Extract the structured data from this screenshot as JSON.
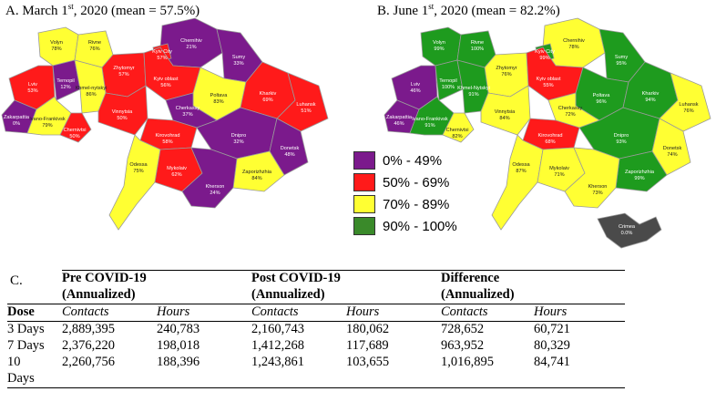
{
  "map_a": {
    "title_pre": "A. March 1",
    "title_sup": "st",
    "title_post": ", 2020 (mean = 57.5%)",
    "regions": [
      {
        "id": "volyn",
        "name": "Volyn",
        "value": "78%",
        "category": "yellow"
      },
      {
        "id": "rivne",
        "name": "Rivne",
        "value": "76%",
        "category": "yellow"
      },
      {
        "id": "chernihiv",
        "name": "Chernihiv",
        "value": "21%",
        "category": "purple"
      },
      {
        "id": "sumy",
        "name": "Sumy",
        "value": "33%",
        "category": "purple"
      },
      {
        "id": "lviv",
        "name": "Lviv",
        "value": "53%",
        "category": "red"
      },
      {
        "id": "zhytomyr",
        "name": "Zhytomyr",
        "value": "57%",
        "category": "red"
      },
      {
        "id": "kyiv-city",
        "name": "Kyiv City",
        "value": "57%",
        "category": "red"
      },
      {
        "id": "kyiv-oblast",
        "name": "Kyiv oblast",
        "value": "56%",
        "category": "red"
      },
      {
        "id": "ternopil",
        "name": "Ternopil",
        "value": "12%",
        "category": "purple"
      },
      {
        "id": "khmelnytskyi",
        "name": "Khmel-nytskyi",
        "value": "86%",
        "category": "yellow"
      },
      {
        "id": "poltava",
        "name": "Poltava",
        "value": "83%",
        "category": "yellow"
      },
      {
        "id": "kharkiv",
        "name": "Kharkiv",
        "value": "69%",
        "category": "red"
      },
      {
        "id": "luhansk",
        "name": "Luhansk",
        "value": "51%",
        "category": "red"
      },
      {
        "id": "zakarpattia",
        "name": "Zakarpattia",
        "value": "0%",
        "category": "purple"
      },
      {
        "id": "ivano-frankivsk",
        "name": "Ivano-Frankivsk",
        "value": "79%",
        "category": "yellow"
      },
      {
        "id": "chernivtsi",
        "name": "Chernivtsi",
        "value": "50%",
        "category": "red"
      },
      {
        "id": "vinnytsia",
        "name": "Vinnytsia",
        "value": "50%",
        "category": "red"
      },
      {
        "id": "cherkassy",
        "name": "Cherkassy",
        "value": "37%",
        "category": "purple"
      },
      {
        "id": "kirovohrad",
        "name": "Kirovohrad",
        "value": "58%",
        "category": "red"
      },
      {
        "id": "dnipro",
        "name": "Dnipro",
        "value": "32%",
        "category": "purple"
      },
      {
        "id": "donetsk",
        "name": "Donetsk",
        "value": "48%",
        "category": "purple"
      },
      {
        "id": "odessa",
        "name": "Odessa",
        "value": "75%",
        "category": "yellow"
      },
      {
        "id": "mykolaiv",
        "name": "Mykolaiv",
        "value": "62%",
        "category": "red"
      },
      {
        "id": "zaporizhzhia",
        "name": "Zaporizhzhia",
        "value": "84%",
        "category": "yellow"
      },
      {
        "id": "kherson",
        "name": "Kherson",
        "value": "24%",
        "category": "purple"
      }
    ]
  },
  "map_b": {
    "title_pre": "B. June 1",
    "title_sup": "st",
    "title_post": ", 2020 (mean = 82.2%)",
    "crimea": {
      "name": "Crimea",
      "value": "0.0%"
    },
    "regions": [
      {
        "id": "volyn",
        "name": "Volyn",
        "value": "99%",
        "category": "green"
      },
      {
        "id": "rivne",
        "name": "Rivne",
        "value": "100%",
        "category": "green"
      },
      {
        "id": "chernihiv",
        "name": "Chernihiv",
        "value": "78%",
        "category": "yellow"
      },
      {
        "id": "sumy",
        "name": "Sumy",
        "value": "95%",
        "category": "green"
      },
      {
        "id": "lviv",
        "name": "Lviv",
        "value": "46%",
        "category": "purple"
      },
      {
        "id": "zhytomyr",
        "name": "Zhytomyr",
        "value": "76%",
        "category": "yellow"
      },
      {
        "id": "kyiv-city",
        "name": "Kyiv City",
        "value": "99%",
        "category": "green"
      },
      {
        "id": "kyiv-oblast",
        "name": "Kyiv oblast",
        "value": "55%",
        "category": "red"
      },
      {
        "id": "ternopil",
        "name": "Ternopil",
        "value": "100%",
        "category": "green"
      },
      {
        "id": "khmelnytskyi",
        "name": "Khmel-Nytskyi",
        "value": "91%",
        "category": "green"
      },
      {
        "id": "poltava",
        "name": "Poltava",
        "value": "96%",
        "category": "green"
      },
      {
        "id": "kharkiv",
        "name": "Kharkiv",
        "value": "94%",
        "category": "green"
      },
      {
        "id": "luhansk",
        "name": "Luhansk",
        "value": "76%",
        "category": "yellow"
      },
      {
        "id": "zakarpattia",
        "name": "Zakarpattia",
        "value": "46%",
        "category": "purple"
      },
      {
        "id": "ivano-frankivsk",
        "name": "Ivano-Frankivsk",
        "value": "91%",
        "category": "green"
      },
      {
        "id": "chernivtsi",
        "name": "Chernivtsi",
        "value": "82%",
        "category": "yellow"
      },
      {
        "id": "vinnytsia",
        "name": "Vinnytsia",
        "value": "84%",
        "category": "yellow"
      },
      {
        "id": "cherkassy",
        "name": "Cherkassy",
        "value": "72%",
        "category": "yellow"
      },
      {
        "id": "kirovohrad",
        "name": "Kirovohrad",
        "value": "68%",
        "category": "red"
      },
      {
        "id": "dnipro",
        "name": "Dnipro",
        "value": "93%",
        "category": "green"
      },
      {
        "id": "donetsk",
        "name": "Donetsk",
        "value": "74%",
        "category": "yellow"
      },
      {
        "id": "odessa",
        "name": "Odessa",
        "value": "87%",
        "category": "yellow"
      },
      {
        "id": "mykolaiv",
        "name": "Mykolaiv",
        "value": "71%",
        "category": "yellow"
      },
      {
        "id": "zaporizhzhia",
        "name": "Zaporizhzhia",
        "value": "99%",
        "category": "green"
      },
      {
        "id": "kherson",
        "name": "Kherson",
        "value": "73%",
        "category": "yellow"
      }
    ]
  },
  "legend": [
    {
      "label": "0% - 49%",
      "color": "#7b1a8c"
    },
    {
      "label": "50% - 69%",
      "color": "#ff1a1a"
    },
    {
      "label": "70% - 89%",
      "color": "#ffff33"
    },
    {
      "label": "90% - 100%",
      "color": "#3a8a2a"
    }
  ],
  "colors": {
    "purple": "#7b1a8c",
    "red": "#ff1a1a",
    "yellow": "#ffff33",
    "green": "#1e9b1e",
    "crimea": "#4a4a4a",
    "border": "#9a9a9a"
  },
  "table": {
    "section_label": "C.",
    "groups": [
      "Pre COVID-19",
      "Post COVID-19",
      "Difference"
    ],
    "group_sub": "(Annualized)",
    "dose_label": "Dose",
    "col_contacts": "Contacts",
    "col_hours": "Hours",
    "rows": [
      {
        "dose": "3 Days",
        "dose_cont": "",
        "pre_contacts": "2,889,395",
        "pre_hours": "240,783",
        "post_contacts": "2,160,743",
        "post_hours": "180,062",
        "diff_contacts": "728,652",
        "diff_hours": "60,721"
      },
      {
        "dose": "7 Days",
        "dose_cont": "",
        "pre_contacts": "2,376,220",
        "pre_hours": "198,018",
        "post_contacts": "1,412,268",
        "post_hours": "117,689",
        "diff_contacts": "963,952",
        "diff_hours": "80,329"
      },
      {
        "dose": "10",
        "dose_cont": "Days",
        "pre_contacts": "2,260,756",
        "pre_hours": "188,396",
        "post_contacts": "1,243,861",
        "post_hours": "103,655",
        "diff_contacts": "1,016,895",
        "diff_hours": "84,741"
      }
    ]
  }
}
